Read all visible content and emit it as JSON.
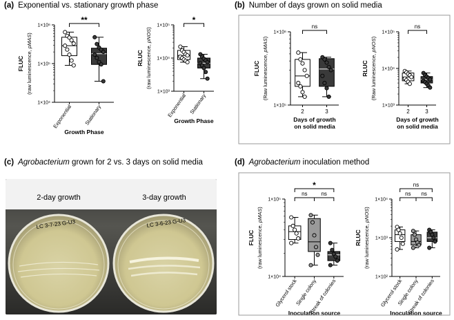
{
  "panels": {
    "a": {
      "letter": "(a)",
      "title": "Exponential vs. stationary growth phase"
    },
    "b": {
      "letter": "(b)",
      "title": "Number of days grown on solid media"
    },
    "c": {
      "letter": "(c)",
      "title_italic": "Agrobacterium",
      "title_rest": " grown for 2 vs. 3 days on solid media"
    },
    "d": {
      "letter": "(d)",
      "title_italic": "Agrobacterium",
      "title_rest": " inoculation method"
    }
  },
  "photo": {
    "left_label": "2-day growth",
    "right_label": "3-day growth",
    "left_plate_writing": "LC 3-7-23 G-U3",
    "right_plate_writing": "LC 3-6-23 G-U3"
  },
  "chart_data": [
    {
      "id": "a-fluc",
      "type": "box",
      "ylabel_main": "FLUC",
      "ylabel_sub": "(raw luminescence, ",
      "ylabel_sub_italic": "pMAS",
      "ylabel_close": ")",
      "yscale": "log",
      "ylim": [
        10000,
        1000000
      ],
      "ytick_labels": [
        "1×10⁴",
        "1×10⁵",
        "1×10⁶"
      ],
      "xlabel": "Growth Phase",
      "categories": [
        "Exponential",
        "Stationary"
      ],
      "fills": [
        "#ffffff",
        "#3a3a3a"
      ],
      "boxes": [
        {
          "min": 90000,
          "q1": 160000,
          "median": 290000,
          "q3": 480000,
          "max": 650000
        },
        {
          "min": 35000,
          "q1": 95000,
          "median": 180000,
          "q3": 250000,
          "max": 480000
        }
      ],
      "points": [
        [
          650000,
          520000,
          470000,
          400000,
          330000,
          290000,
          230000,
          170000,
          120000,
          90000
        ],
        [
          480000,
          320000,
          260000,
          230000,
          200000,
          170000,
          140000,
          110000,
          95000,
          35000
        ]
      ],
      "comparisons": [
        {
          "from": 0,
          "to": 1,
          "label": "**",
          "level": 0
        }
      ]
    },
    {
      "id": "a-rluc",
      "type": "box",
      "ylabel_main": "RLUC",
      "ylabel_sub": "(raw luminescence, ",
      "ylabel_sub_italic": "pNOS",
      "ylabel_close": ")",
      "yscale": "log",
      "ylim": [
        1000,
        100000
      ],
      "ytick_labels": [
        "1×10³",
        "1×10⁴",
        "1×10⁵"
      ],
      "xlabel": "Growth Phase",
      "categories": [
        "Exponential",
        "Stationary"
      ],
      "fills": [
        "#ffffff",
        "#3a3a3a"
      ],
      "boxes": [
        {
          "min": 7500,
          "q1": 9000,
          "median": 12000,
          "q3": 17000,
          "max": 22000
        },
        {
          "min": 2400,
          "q1": 5000,
          "median": 7000,
          "q3": 10000,
          "max": 13000
        }
      ],
      "points": [
        [
          22000,
          17000,
          15000,
          13000,
          12000,
          11000,
          10000,
          9000,
          8200,
          7500
        ],
        [
          13000,
          11000,
          9500,
          8500,
          7500,
          7000,
          6000,
          5000,
          3800,
          2400
        ]
      ],
      "comparisons": [
        {
          "from": 0,
          "to": 1,
          "label": "*",
          "level": 0
        }
      ]
    },
    {
      "id": "b-fluc",
      "type": "box",
      "ylabel_main": "FLUC",
      "ylabel_sub": "(Raw luminescence, ",
      "ylabel_sub_italic": "pMAS",
      "ylabel_close": ")",
      "yscale": "log",
      "ylim": [
        100000,
        1000000
      ],
      "ytick_labels": [
        "1×10⁵",
        "1×10⁶"
      ],
      "xlabel_lines": [
        "Days of growth",
        "on solid media"
      ],
      "categories": [
        "2",
        "3"
      ],
      "fills": [
        "#ffffff",
        "#3a3a3a"
      ],
      "boxes": [
        {
          "min": 130000,
          "q1": 180000,
          "median": 250000,
          "q3": 420000,
          "max": 520000
        },
        {
          "min": 130000,
          "q1": 180000,
          "median": 310000,
          "q3": 430000,
          "max": 450000
        }
      ],
      "points": [
        [
          520000,
          420000,
          370000,
          300000,
          250000,
          200000,
          180000,
          150000,
          130000
        ],
        [
          450000,
          420000,
          380000,
          330000,
          300000,
          250000,
          200000,
          170000,
          130000
        ]
      ],
      "comparisons": [
        {
          "from": 0,
          "to": 1,
          "label": "ns",
          "level": 0
        }
      ]
    },
    {
      "id": "b-rluc",
      "type": "box",
      "ylabel_main": "RLUC",
      "ylabel_sub": "(Raw luminescence, ",
      "ylabel_sub_italic": "pNOS",
      "ylabel_close": ")",
      "yscale": "log",
      "ylim": [
        1000,
        100000
      ],
      "ytick_labels": [
        "1×10³",
        "1×10⁴",
        "1×10⁵"
      ],
      "xlabel_lines": [
        "Days of growth",
        "on solid media"
      ],
      "categories": [
        "2",
        "3"
      ],
      "fills": [
        "#ffffff",
        "#3a3a3a"
      ],
      "boxes": [
        {
          "min": 3800,
          "q1": 4600,
          "median": 5800,
          "q3": 7500,
          "max": 8500
        },
        {
          "min": 3000,
          "q1": 4000,
          "median": 5000,
          "q3": 6000,
          "max": 7500
        }
      ],
      "points": [
        [
          8500,
          7800,
          7000,
          6500,
          5800,
          5300,
          4800,
          4300,
          3800
        ],
        [
          7500,
          6600,
          6000,
          5500,
          5000,
          4600,
          4200,
          3800,
          3400,
          3000
        ]
      ],
      "comparisons": [
        {
          "from": 0,
          "to": 1,
          "label": "ns",
          "level": 0
        }
      ]
    },
    {
      "id": "d-fluc",
      "type": "box",
      "ylabel_main": "FLUC",
      "ylabel_sub": "(raw luminescence, ",
      "ylabel_sub_italic": "pMAS",
      "ylabel_close": ")",
      "yscale": "log",
      "ylim": [
        10000,
        100000
      ],
      "ytick_labels": [
        "1×10⁴",
        "1×10⁵"
      ],
      "xlabel": "Inoculation source",
      "categories": [
        "Glycerol stock",
        "Single colony",
        "Streak of colonies"
      ],
      "fills": [
        "#ffffff",
        "#9a9a9a",
        "#3a3a3a"
      ],
      "boxes": [
        {
          "min": 27000,
          "q1": 30000,
          "median": 38000,
          "q3": 45000,
          "max": 58000
        },
        {
          "min": 14000,
          "q1": 21000,
          "median": 28000,
          "q3": 56000,
          "max": 62000
        },
        {
          "min": 14000,
          "q1": 16000,
          "median": 19000,
          "q3": 21000,
          "max": 27000
        }
      ],
      "points": [
        [
          58000,
          45000,
          40000,
          36000,
          31000,
          27000
        ],
        [
          62000,
          50000,
          34000,
          24000,
          19000,
          14000
        ],
        [
          27000,
          22000,
          19500,
          18000,
          16000,
          14000
        ]
      ],
      "comparisons": [
        {
          "from": 0,
          "to": 1,
          "label": "ns",
          "level": 0
        },
        {
          "from": 1,
          "to": 2,
          "label": "ns",
          "level": 0
        },
        {
          "from": 0,
          "to": 2,
          "label": "*",
          "level": 1
        }
      ]
    },
    {
      "id": "d-rluc",
      "type": "box",
      "ylabel_main": "RLUC",
      "ylabel_sub": "(raw luminescence, ",
      "ylabel_sub_italic": "pNOS",
      "ylabel_close": ")",
      "yscale": "log",
      "ylim": [
        100,
        10000
      ],
      "ytick_labels": [
        "1×10²",
        "1×10³",
        "1×10⁴"
      ],
      "xlabel": "Inoculation source",
      "categories": [
        "Glycerol stock",
        "Single colony",
        "Streak of colonies"
      ],
      "fills": [
        "#ffffff",
        "#9a9a9a",
        "#3a3a3a"
      ],
      "boxes": [
        {
          "min": 500,
          "q1": 800,
          "median": 1200,
          "q3": 1600,
          "max": 1900
        },
        {
          "min": 550,
          "q1": 650,
          "median": 800,
          "q3": 1200,
          "max": 1500
        },
        {
          "min": 550,
          "q1": 800,
          "median": 1000,
          "q3": 1400,
          "max": 1600
        }
      ],
      "points": [
        [
          1900,
          1600,
          1300,
          1000,
          700,
          500
        ],
        [
          1500,
          1200,
          900,
          750,
          650,
          550
        ],
        [
          1600,
          1400,
          1200,
          1000,
          800,
          550
        ]
      ],
      "comparisons": [
        {
          "from": 0,
          "to": 1,
          "label": "ns",
          "level": 0
        },
        {
          "from": 1,
          "to": 2,
          "label": "ns",
          "level": 0
        },
        {
          "from": 0,
          "to": 2,
          "label": "ns",
          "level": 1
        }
      ]
    }
  ]
}
